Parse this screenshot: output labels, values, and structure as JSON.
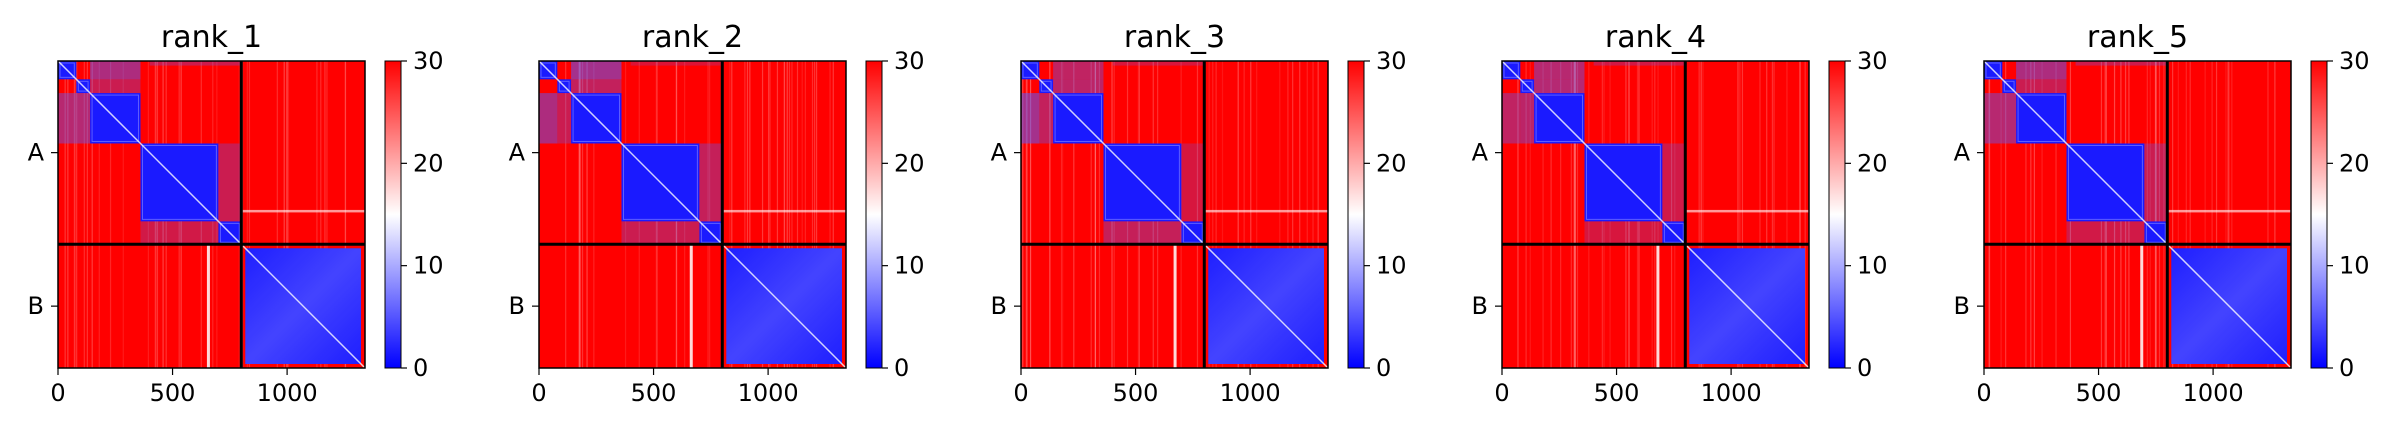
{
  "chart_data": {
    "type": "heatmap",
    "panels": [
      {
        "title": "rank_1",
        "variant": 1
      },
      {
        "title": "rank_2",
        "variant": 2
      },
      {
        "title": "rank_3",
        "variant": 3
      },
      {
        "title": "rank_4",
        "variant": 4
      },
      {
        "title": "rank_5",
        "variant": 5
      }
    ],
    "x_ticks": [
      {
        "value": 0,
        "label": "0"
      },
      {
        "value": 500,
        "label": "500"
      },
      {
        "value": 1000,
        "label": "1000"
      }
    ],
    "xlim": [
      0,
      1340
    ],
    "ylim": [
      1340,
      0
    ],
    "y_tick_labels": [
      {
        "value": 400,
        "label": "A"
      },
      {
        "value": 1070,
        "label": "B"
      }
    ],
    "chain_boundary": 800,
    "domains_A": [
      {
        "start": 0,
        "end": 80
      },
      {
        "start": 80,
        "end": 140
      },
      {
        "start": 140,
        "end": 360
      },
      {
        "start": 360,
        "end": 700
      },
      {
        "start": 700,
        "end": 800
      }
    ],
    "colorbar": {
      "min": 0,
      "max": 30,
      "ticks": [
        {
          "value": 0,
          "label": "0"
        },
        {
          "value": 10,
          "label": "10"
        },
        {
          "value": 20,
          "label": "20"
        },
        {
          "value": 30,
          "label": "30"
        }
      ],
      "colormap": [
        "#0000ff",
        "#ffffff",
        "#ff0000"
      ]
    }
  }
}
